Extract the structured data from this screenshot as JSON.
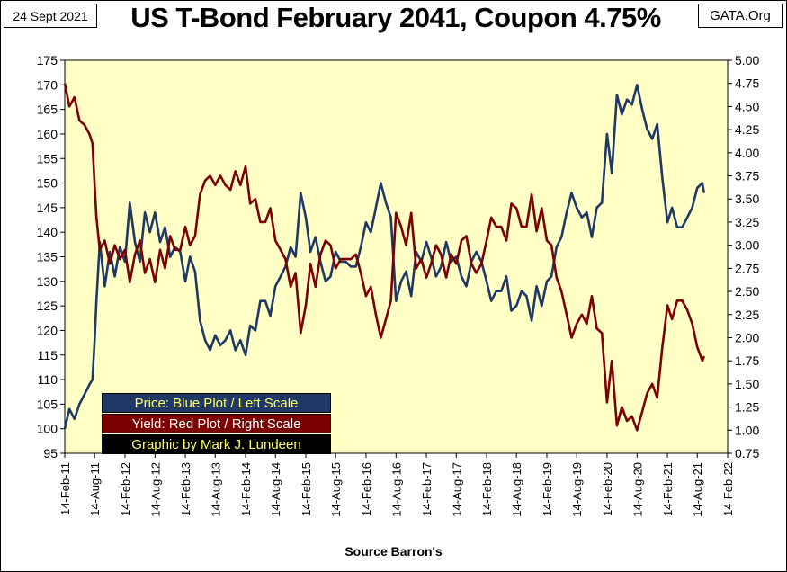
{
  "header": {
    "date": "24 Sept 2021",
    "title": "US T-Bond February 2041, Coupon 4.75%",
    "source_tag": "GATA.Org"
  },
  "legend": {
    "price": "Price:  Blue Plot / Left Scale",
    "yield": "Yield:  Red Plot / Right Scale",
    "credit": "Graphic by Mark J. Lundeen"
  },
  "chart_data": {
    "type": "line",
    "xlabel": "Source Barron's",
    "x_ticks": [
      "14-Feb-11",
      "14-Aug-11",
      "14-Feb-12",
      "14-Aug-12",
      "14-Feb-13",
      "14-Aug-13",
      "14-Feb-14",
      "14-Aug-14",
      "14-Feb-15",
      "14-Aug-15",
      "14-Feb-16",
      "14-Aug-16",
      "14-Feb-17",
      "14-Aug-17",
      "14-Feb-18",
      "14-Aug-18",
      "14-Feb-19",
      "14-Aug-19",
      "14-Feb-20",
      "14-Aug-20",
      "14-Feb-21",
      "14-Aug-21",
      "14-Feb-22"
    ],
    "y_left": {
      "min": 95,
      "max": 175,
      "step": 5
    },
    "y_right": {
      "min": 0.75,
      "max": 5.0,
      "step": 0.25
    },
    "grid": false,
    "series": [
      {
        "axis": "left",
        "color": "#1f3864",
        "x": [
          "2011-02-14",
          "2011-03-14",
          "2011-04-14",
          "2011-05-14",
          "2011-06-14",
          "2011-07-14",
          "2011-08-01",
          "2011-08-14",
          "2011-08-25",
          "2011-09-14",
          "2011-10-14",
          "2011-11-14",
          "2011-12-14",
          "2012-01-14",
          "2012-02-14",
          "2012-03-14",
          "2012-04-14",
          "2012-05-14",
          "2012-06-14",
          "2012-07-14",
          "2012-08-14",
          "2012-09-14",
          "2012-10-14",
          "2012-11-14",
          "2012-12-14",
          "2013-01-14",
          "2013-02-14",
          "2013-03-14",
          "2013-04-14",
          "2013-05-14",
          "2013-06-14",
          "2013-07-14",
          "2013-08-14",
          "2013-09-14",
          "2013-10-14",
          "2013-11-14",
          "2013-12-14",
          "2014-01-14",
          "2014-02-14",
          "2014-03-14",
          "2014-04-14",
          "2014-05-14",
          "2014-06-14",
          "2014-07-14",
          "2014-08-14",
          "2014-09-14",
          "2014-10-14",
          "2014-11-14",
          "2014-12-14",
          "2015-01-14",
          "2015-02-14",
          "2015-03-14",
          "2015-04-14",
          "2015-05-14",
          "2015-06-14",
          "2015-07-14",
          "2015-08-14",
          "2015-09-14",
          "2015-10-14",
          "2015-11-14",
          "2015-12-14",
          "2016-01-14",
          "2016-02-14",
          "2016-03-14",
          "2016-04-14",
          "2016-05-14",
          "2016-06-14",
          "2016-07-14",
          "2016-08-14",
          "2016-09-14",
          "2016-10-14",
          "2016-11-14",
          "2016-12-14",
          "2017-01-14",
          "2017-02-14",
          "2017-03-14",
          "2017-04-14",
          "2017-05-14",
          "2017-06-14",
          "2017-07-14",
          "2017-08-14",
          "2017-09-14",
          "2017-10-14",
          "2017-11-14",
          "2017-12-14",
          "2018-01-14",
          "2018-02-14",
          "2018-03-14",
          "2018-04-14",
          "2018-05-14",
          "2018-06-14",
          "2018-07-14",
          "2018-08-14",
          "2018-09-14",
          "2018-10-14",
          "2018-11-14",
          "2018-12-14",
          "2019-01-14",
          "2019-02-14",
          "2019-03-14",
          "2019-04-14",
          "2019-05-14",
          "2019-06-14",
          "2019-07-14",
          "2019-08-14",
          "2019-09-14",
          "2019-10-14",
          "2019-11-14",
          "2019-12-14",
          "2020-01-14",
          "2020-02-14",
          "2020-03-14",
          "2020-04-14",
          "2020-05-14",
          "2020-06-14",
          "2020-07-14",
          "2020-08-14",
          "2020-09-14",
          "2020-10-14",
          "2020-11-14",
          "2020-12-14",
          "2021-01-14",
          "2021-02-14",
          "2021-03-14",
          "2021-04-14",
          "2021-05-14",
          "2021-06-14",
          "2021-07-14",
          "2021-08-14",
          "2021-09-14",
          "2021-09-24"
        ],
        "values": [
          100,
          104,
          102,
          105,
          107,
          109,
          110,
          118,
          126,
          138,
          129,
          136,
          131,
          137,
          134,
          146,
          138,
          134,
          144,
          140,
          144,
          138,
          141,
          135,
          137,
          136,
          130,
          135,
          132,
          122,
          118,
          116,
          119,
          117,
          118,
          120,
          116,
          118,
          115,
          121,
          120,
          126,
          126,
          123,
          129,
          131,
          133,
          137,
          135,
          148,
          143,
          136,
          139,
          134,
          130,
          131,
          136,
          134,
          134,
          133,
          133,
          137,
          142,
          140,
          145,
          150,
          146,
          143,
          126,
          130,
          132,
          127,
          136,
          134,
          138,
          135,
          131,
          133,
          138,
          134,
          135,
          131,
          129,
          134,
          136,
          134,
          130,
          126,
          128,
          128,
          131,
          124,
          125,
          128,
          127,
          122,
          129,
          125,
          130,
          131,
          137,
          139,
          144,
          148,
          145,
          143,
          144,
          139,
          145,
          146,
          160,
          152,
          168,
          164,
          167,
          166,
          170,
          165,
          161,
          159,
          162,
          151,
          142,
          145,
          141,
          141,
          143,
          145,
          149,
          150,
          148
        ]
      },
      {
        "axis": "right",
        "color": "#7b0000",
        "x": [
          "2011-02-14",
          "2011-03-14",
          "2011-04-14",
          "2011-05-14",
          "2011-06-14",
          "2011-07-14",
          "2011-08-01",
          "2011-08-14",
          "2011-08-25",
          "2011-09-14",
          "2011-10-14",
          "2011-11-14",
          "2011-12-14",
          "2012-01-14",
          "2012-02-14",
          "2012-03-14",
          "2012-04-14",
          "2012-05-14",
          "2012-06-14",
          "2012-07-14",
          "2012-08-14",
          "2012-09-14",
          "2012-10-14",
          "2012-11-14",
          "2012-12-14",
          "2013-01-14",
          "2013-02-14",
          "2013-03-14",
          "2013-04-14",
          "2013-05-14",
          "2013-06-14",
          "2013-07-14",
          "2013-08-14",
          "2013-09-14",
          "2013-10-14",
          "2013-11-14",
          "2013-12-14",
          "2014-01-14",
          "2014-02-14",
          "2014-03-14",
          "2014-04-14",
          "2014-05-14",
          "2014-06-14",
          "2014-07-14",
          "2014-08-14",
          "2014-09-14",
          "2014-10-14",
          "2014-11-14",
          "2014-12-14",
          "2015-01-14",
          "2015-02-14",
          "2015-03-14",
          "2015-04-14",
          "2015-05-14",
          "2015-06-14",
          "2015-07-14",
          "2015-08-14",
          "2015-09-14",
          "2015-10-14",
          "2015-11-14",
          "2015-12-14",
          "2016-01-14",
          "2016-02-14",
          "2016-03-14",
          "2016-04-14",
          "2016-05-14",
          "2016-06-14",
          "2016-07-14",
          "2016-08-14",
          "2016-09-14",
          "2016-10-14",
          "2016-11-14",
          "2016-12-14",
          "2017-01-14",
          "2017-02-14",
          "2017-03-14",
          "2017-04-14",
          "2017-05-14",
          "2017-06-14",
          "2017-07-14",
          "2017-08-14",
          "2017-09-14",
          "2017-10-14",
          "2017-11-14",
          "2017-12-14",
          "2018-01-14",
          "2018-02-14",
          "2018-03-14",
          "2018-04-14",
          "2018-05-14",
          "2018-06-14",
          "2018-07-14",
          "2018-08-14",
          "2018-09-14",
          "2018-10-14",
          "2018-11-14",
          "2018-12-14",
          "2019-01-14",
          "2019-02-14",
          "2019-03-14",
          "2019-04-14",
          "2019-05-14",
          "2019-06-14",
          "2019-07-14",
          "2019-08-14",
          "2019-09-14",
          "2019-10-14",
          "2019-11-14",
          "2019-12-14",
          "2020-01-14",
          "2020-02-14",
          "2020-03-14",
          "2020-04-14",
          "2020-05-14",
          "2020-06-14",
          "2020-07-14",
          "2020-08-14",
          "2020-09-14",
          "2020-10-14",
          "2020-11-14",
          "2020-12-14",
          "2021-01-14",
          "2021-02-14",
          "2021-03-14",
          "2021-04-14",
          "2021-05-14",
          "2021-06-14",
          "2021-07-14",
          "2021-08-14",
          "2021-09-14",
          "2021-09-24"
        ],
        "values": [
          4.75,
          4.5,
          4.6,
          4.35,
          4.3,
          4.2,
          4.1,
          3.65,
          3.3,
          2.95,
          3.05,
          2.8,
          3.0,
          2.85,
          2.95,
          2.6,
          2.9,
          3.05,
          2.7,
          2.85,
          2.6,
          2.95,
          2.75,
          3.1,
          2.95,
          2.95,
          3.2,
          3.0,
          3.1,
          3.55,
          3.7,
          3.75,
          3.65,
          3.75,
          3.65,
          3.6,
          3.8,
          3.65,
          3.85,
          3.45,
          3.5,
          3.25,
          3.25,
          3.4,
          3.05,
          2.95,
          2.85,
          2.55,
          2.7,
          2.05,
          2.35,
          2.8,
          2.55,
          2.9,
          3.05,
          3.0,
          2.75,
          2.85,
          2.85,
          2.85,
          2.9,
          2.7,
          2.45,
          2.55,
          2.25,
          2.0,
          2.2,
          2.4,
          3.35,
          3.2,
          3.0,
          3.35,
          2.75,
          2.85,
          2.65,
          2.8,
          3.0,
          2.9,
          2.65,
          2.9,
          2.8,
          3.05,
          3.1,
          2.8,
          2.7,
          2.8,
          3.05,
          3.3,
          3.2,
          3.2,
          3.05,
          3.45,
          3.4,
          3.2,
          3.2,
          3.55,
          3.15,
          3.4,
          3.05,
          3.0,
          2.65,
          2.5,
          2.25,
          2.0,
          2.15,
          2.25,
          2.15,
          2.45,
          2.1,
          2.05,
          1.3,
          1.75,
          1.05,
          1.25,
          1.1,
          1.15,
          1.0,
          1.2,
          1.4,
          1.5,
          1.35,
          1.9,
          2.35,
          2.2,
          2.4,
          2.4,
          2.3,
          2.15,
          1.9,
          1.75,
          1.8
        ]
      }
    ]
  }
}
